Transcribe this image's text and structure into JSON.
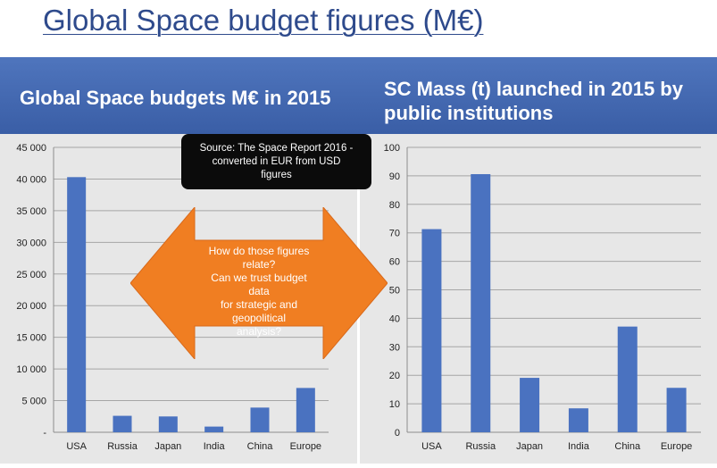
{
  "page": {
    "title": "Global Space budget figures (M€)",
    "header_left": "Global Space budgets M€ in 2015",
    "header_right": "SC Mass (t) launched in 2015 by public institutions",
    "source_note": "Source: The Space Report 2016 -\nconverted in EUR from USD\nfigures",
    "arrow_note": "How do those figures\nrelate?\nCan we trust budget data\nfor strategic and geopolitical\nanalysis?",
    "colors": {
      "header_band": "#3f63ab",
      "bar": "#4a72c0",
      "panel_bg": "#e7e7e7",
      "arrow": "#f07e22",
      "title": "#2e4a8c"
    }
  },
  "chart_data": [
    {
      "type": "bar",
      "title": "Global Space budgets M€ in 2015",
      "categories": [
        "USA",
        "Russia",
        "Japan",
        "India",
        "China",
        "Europe"
      ],
      "values": [
        40300,
        2600,
        2500,
        900,
        3900,
        7000
      ],
      "ylim": [
        0,
        45000
      ],
      "yticks": [
        0,
        5000,
        10000,
        15000,
        20000,
        25000,
        30000,
        35000,
        40000,
        45000
      ],
      "ytick_labels": [
        "-",
        "5 000",
        "10 000",
        "15 000",
        "20 000",
        "25 000",
        "30 000",
        "35 000",
        "40 000",
        "45 000"
      ],
      "grid": true
    },
    {
      "type": "bar",
      "title": "SC Mass (t) launched in 2015 by public institutions",
      "categories": [
        "USA",
        "Russia",
        "Japan",
        "India",
        "China",
        "Europe"
      ],
      "values": [
        71.3,
        90.6,
        19.1,
        8.4,
        37.1,
        15.6
      ],
      "ylim": [
        0,
        100
      ],
      "yticks": [
        0,
        10,
        20,
        30,
        40,
        50,
        60,
        70,
        80,
        90,
        100
      ],
      "ytick_labels": [
        "0",
        "10",
        "20",
        "30",
        "40",
        "50",
        "60",
        "70",
        "80",
        "90",
        "100"
      ],
      "grid": true
    }
  ]
}
